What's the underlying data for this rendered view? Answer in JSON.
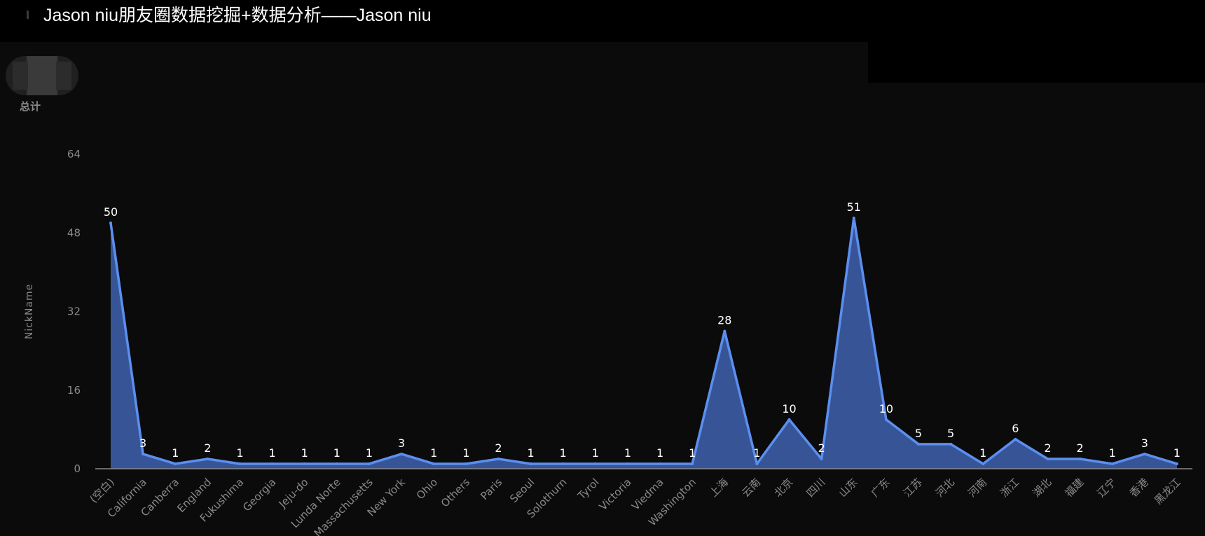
{
  "header": {
    "title": "Jason niu朋友圈数据挖掘+数据分析——Jason niu"
  },
  "legend": {
    "label": "总计"
  },
  "colors": {
    "background": "#0b0b0c",
    "line": "#5b8ff0",
    "area": "#3a5a9e",
    "axis": "#8a8a8a"
  },
  "chart_data": {
    "type": "area",
    "title": "Jason niu朋友圈数据挖掘+数据分析——Jason niu",
    "ylabel": "NickName",
    "xlabel": "",
    "ylim": [
      0,
      64
    ],
    "yticks": [
      0,
      16,
      32,
      48,
      64
    ],
    "grid": false,
    "categories": [
      "(空白)",
      "California",
      "Canberra",
      "England",
      "Fukushima",
      "Georgia",
      "Jeju-do",
      "Lunda Norte",
      "Massachusetts",
      "New York",
      "Ohio",
      "Others",
      "Paris",
      "Seoul",
      "Solothurn",
      "Tyrol",
      "Victoria",
      "Viedma",
      "Washington",
      "上海",
      "云南",
      "北京",
      "四川",
      "山东",
      "广东",
      "江苏",
      "河北",
      "河南",
      "浙江",
      "湖北",
      "福建",
      "辽宁",
      "香港",
      "黑龙江"
    ],
    "series": [
      {
        "name": "总计",
        "values": [
          50,
          3,
          1,
          2,
          1,
          1,
          1,
          1,
          1,
          3,
          1,
          1,
          2,
          1,
          1,
          1,
          1,
          1,
          1,
          28,
          1,
          10,
          2,
          51,
          10,
          5,
          5,
          1,
          6,
          2,
          2,
          1,
          3,
          1
        ]
      }
    ]
  }
}
